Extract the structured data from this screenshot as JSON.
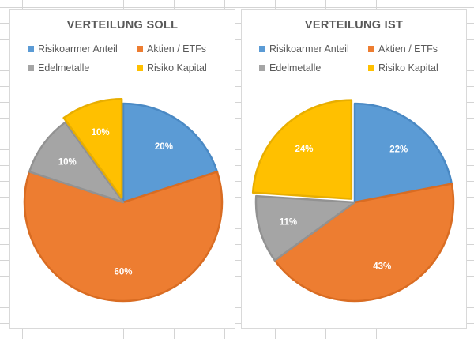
{
  "chart_data": [
    {
      "type": "pie",
      "title": "VERTEILUNG SOLL",
      "categories": [
        "Risikoarmer Anteil",
        "Aktien / ETFs",
        "Edelmetalle",
        "Risiko Kapital"
      ],
      "values": [
        20,
        60,
        10,
        10
      ],
      "labels": [
        "20%",
        "60%",
        "10%",
        "10%"
      ],
      "colors": [
        "#5b9bd5",
        "#ed7d31",
        "#a5a5a5",
        "#ffc000"
      ],
      "legend_position": "top",
      "exploded_slice": "Risiko Kapital"
    },
    {
      "type": "pie",
      "title": "VERTEILUNG IST",
      "categories": [
        "Risikoarmer Anteil",
        "Aktien / ETFs",
        "Edelmetalle",
        "Risiko Kapital"
      ],
      "values": [
        22,
        43,
        11,
        24
      ],
      "labels": [
        "22%",
        "43%",
        "11%",
        "24%"
      ],
      "colors": [
        "#5b9bd5",
        "#ed7d31",
        "#a5a5a5",
        "#ffc000"
      ],
      "legend_position": "top",
      "exploded_slice": "Risiko Kapital"
    }
  ]
}
